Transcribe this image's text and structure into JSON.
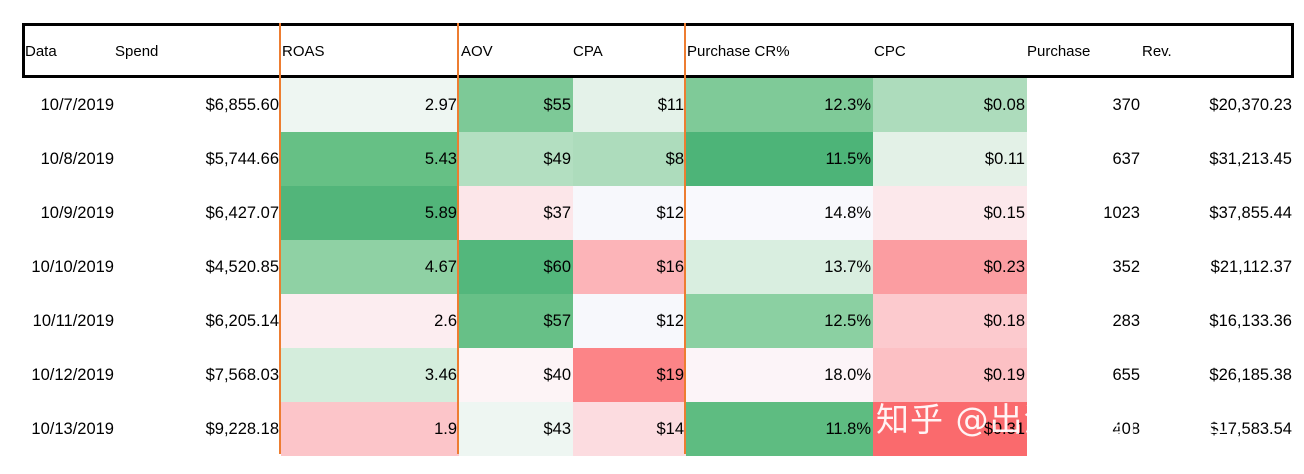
{
  "header": {
    "date": "Data",
    "spend": "Spend",
    "roas": "ROAS",
    "aov": "AOV",
    "cpa": "CPA",
    "purchase_cr": "Purchase CR%",
    "cpc": "CPC",
    "purchase": "Purchase",
    "rev": "Rev."
  },
  "rows": [
    {
      "date": "10/7/2019",
      "spend": "$6,855.60",
      "roas": "2.97",
      "aov": "$55",
      "cpa": "$11",
      "cr": "12.3%",
      "cpc": "$0.08",
      "purchase": "370",
      "rev": "$20,370.23",
      "colors": {
        "roas": "#EEF6F2",
        "aov": "#7DC997",
        "cpa": "#E4F2E9",
        "cr": "#7FCA98",
        "cpc": "#ADDCBC"
      }
    },
    {
      "date": "10/8/2019",
      "spend": "$5,744.66",
      "roas": "5.43",
      "aov": "$49",
      "cpa": "$8",
      "cr": "11.5%",
      "cpc": "$0.11",
      "purchase": "637",
      "rev": "$31,213.45",
      "colors": {
        "roas": "#66C085",
        "aov": "#B3DFC1",
        "cpa": "#ADDCBC",
        "cr": "#4DB478",
        "cpc": "#E3F1E7"
      }
    },
    {
      "date": "10/9/2019",
      "spend": "$6,427.07",
      "roas": "5.89",
      "aov": "$37",
      "cpa": "$12",
      "cr": "14.8%",
      "cpc": "$0.15",
      "purchase": "1023",
      "rev": "$37,855.44",
      "colors": {
        "roas": "#52B57A",
        "aov": "#FCE6E9",
        "cpa": "#F7F8FC",
        "cr": "#F9F9FD",
        "cpc": "#FCE8EB"
      }
    },
    {
      "date": "10/10/2019",
      "spend": "$4,520.85",
      "roas": "4.67",
      "aov": "$60",
      "cpa": "$16",
      "cr": "13.7%",
      "cpc": "$0.23",
      "purchase": "352",
      "rev": "$21,112.37",
      "colors": {
        "roas": "#8FD1A4",
        "aov": "#53B77C",
        "cpa": "#FCB4B8",
        "cr": "#D9EEE0",
        "cpc": "#FB9DA1"
      }
    },
    {
      "date": "10/11/2019",
      "spend": "$6,205.14",
      "roas": "2.6",
      "aov": "$57",
      "cpa": "$12",
      "cr": "12.5%",
      "cpc": "$0.18",
      "purchase": "283",
      "rev": "$16,133.36",
      "colors": {
        "roas": "#FCEDF0",
        "aov": "#67C087",
        "cpa": "#F7F8FC",
        "cr": "#8BD0A2",
        "cpc": "#FCCACE"
      }
    },
    {
      "date": "10/12/2019",
      "spend": "$7,568.03",
      "roas": "3.46",
      "aov": "$40",
      "cpa": "$19",
      "cr": "18.0%",
      "cpc": "$0.19",
      "purchase": "655",
      "rev": "$26,185.38",
      "colors": {
        "roas": "#D4EDDC",
        "aov": "#FDF4F6",
        "cpa": "#FC8487",
        "cr": "#FCF4F8",
        "cpc": "#FCC0C4"
      }
    },
    {
      "date": "10/13/2019",
      "spend": "$9,228.18",
      "roas": "1.9",
      "aov": "$43",
      "cpa": "$14",
      "cr": "11.8%",
      "cpc": "$0.31",
      "purchase": "408",
      "rev": "$17,583.54",
      "colors": {
        "roas": "#FCC5C9",
        "aov": "#EEF6F2",
        "cpa": "#FCDCE0",
        "cr": "#5EBC81",
        "cpc": "#FA6A6D"
      }
    }
  ],
  "watermark": "知乎 @出海营销传达室",
  "accent_color": "#ED7D31"
}
